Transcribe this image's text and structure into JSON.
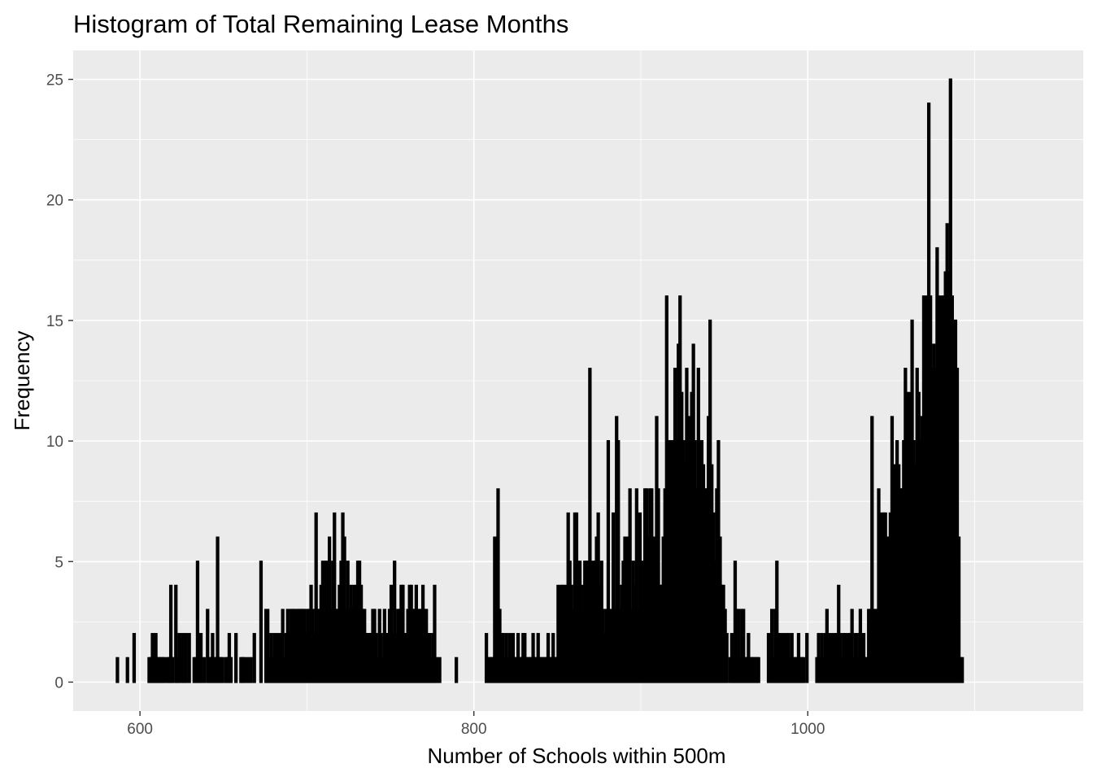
{
  "chart_data": {
    "type": "histogram",
    "title": "Histogram of Total Remaining Lease Months",
    "xlabel": "Number of Schools within 500m",
    "ylabel": "Frequency",
    "xlim": [
      560,
      1165
    ],
    "ylim": [
      -1.2,
      26.2
    ],
    "x_ticks": [
      600,
      800,
      1000
    ],
    "y_ticks": [
      0,
      5,
      10,
      15,
      20,
      25
    ],
    "grid": true,
    "panel_background": "#ebebeb",
    "bar_fill": "#ff9a1a",
    "bar_outline": "#000000",
    "bin_width": 1,
    "bins": [
      [
        586,
        1
      ],
      [
        592,
        1
      ],
      [
        596,
        2
      ],
      [
        605,
        1
      ],
      [
        606,
        1
      ],
      [
        607,
        2
      ],
      [
        608,
        1
      ],
      [
        609,
        2
      ],
      [
        610,
        1
      ],
      [
        611,
        1
      ],
      [
        612,
        1
      ],
      [
        613,
        1
      ],
      [
        614,
        1
      ],
      [
        616,
        1
      ],
      [
        617,
        1
      ],
      [
        618,
        4
      ],
      [
        619,
        1
      ],
      [
        621,
        4
      ],
      [
        622,
        1
      ],
      [
        623,
        2
      ],
      [
        625,
        2
      ],
      [
        626,
        1
      ],
      [
        627,
        2
      ],
      [
        629,
        2
      ],
      [
        632,
        1
      ],
      [
        633,
        1
      ],
      [
        634,
        5
      ],
      [
        635,
        1
      ],
      [
        636,
        2
      ],
      [
        638,
        1
      ],
      [
        640,
        3
      ],
      [
        641,
        1
      ],
      [
        642,
        1
      ],
      [
        643,
        2
      ],
      [
        644,
        1
      ],
      [
        645,
        1
      ],
      [
        646,
        6
      ],
      [
        647,
        1
      ],
      [
        648,
        1
      ],
      [
        649,
        1
      ],
      [
        651,
        1
      ],
      [
        652,
        1
      ],
      [
        653,
        2
      ],
      [
        654,
        1
      ],
      [
        657,
        2
      ],
      [
        660,
        1
      ],
      [
        661,
        1
      ],
      [
        662,
        1
      ],
      [
        664,
        1
      ],
      [
        666,
        1
      ],
      [
        668,
        2
      ],
      [
        672,
        5
      ],
      [
        675,
        3
      ],
      [
        676,
        3
      ],
      [
        677,
        1
      ],
      [
        678,
        2
      ],
      [
        679,
        1
      ],
      [
        680,
        2
      ],
      [
        681,
        1
      ],
      [
        682,
        2
      ],
      [
        683,
        1
      ],
      [
        684,
        2
      ],
      [
        685,
        3
      ],
      [
        686,
        1
      ],
      [
        687,
        2
      ],
      [
        688,
        3
      ],
      [
        689,
        2
      ],
      [
        690,
        3
      ],
      [
        691,
        3
      ],
      [
        692,
        3
      ],
      [
        693,
        2
      ],
      [
        694,
        3
      ],
      [
        695,
        3
      ],
      [
        696,
        3
      ],
      [
        697,
        3
      ],
      [
        698,
        3
      ],
      [
        699,
        2
      ],
      [
        700,
        3
      ],
      [
        701,
        3
      ],
      [
        702,
        4
      ],
      [
        703,
        3
      ],
      [
        704,
        2
      ],
      [
        705,
        7
      ],
      [
        706,
        3
      ],
      [
        707,
        3
      ],
      [
        708,
        4
      ],
      [
        709,
        5
      ],
      [
        710,
        3
      ],
      [
        711,
        5
      ],
      [
        712,
        4
      ],
      [
        713,
        6
      ],
      [
        714,
        3
      ],
      [
        715,
        5
      ],
      [
        716,
        7
      ],
      [
        717,
        3
      ],
      [
        718,
        3
      ],
      [
        719,
        4
      ],
      [
        720,
        5
      ],
      [
        721,
        7
      ],
      [
        722,
        6
      ],
      [
        723,
        3
      ],
      [
        724,
        5
      ],
      [
        725,
        3
      ],
      [
        726,
        4
      ],
      [
        727,
        3
      ],
      [
        728,
        4
      ],
      [
        729,
        3
      ],
      [
        730,
        5
      ],
      [
        731,
        5
      ],
      [
        732,
        4
      ],
      [
        733,
        3
      ],
      [
        734,
        3
      ],
      [
        735,
        2
      ],
      [
        736,
        2
      ],
      [
        737,
        2
      ],
      [
        738,
        2
      ],
      [
        739,
        3
      ],
      [
        740,
        3
      ],
      [
        741,
        2
      ],
      [
        742,
        1
      ],
      [
        743,
        3
      ],
      [
        744,
        2
      ],
      [
        745,
        1
      ],
      [
        746,
        3
      ],
      [
        747,
        2
      ],
      [
        748,
        2
      ],
      [
        749,
        3
      ],
      [
        750,
        4
      ],
      [
        751,
        2
      ],
      [
        752,
        5
      ],
      [
        753,
        2
      ],
      [
        754,
        3
      ],
      [
        755,
        3
      ],
      [
        756,
        4
      ],
      [
        757,
        4
      ],
      [
        758,
        2
      ],
      [
        759,
        2
      ],
      [
        760,
        3
      ],
      [
        761,
        4
      ],
      [
        762,
        4
      ],
      [
        763,
        3
      ],
      [
        764,
        3
      ],
      [
        765,
        4
      ],
      [
        766,
        3
      ],
      [
        767,
        3
      ],
      [
        768,
        3
      ],
      [
        769,
        4
      ],
      [
        770,
        3
      ],
      [
        771,
        3
      ],
      [
        772,
        2
      ],
      [
        773,
        2
      ],
      [
        774,
        1
      ],
      [
        775,
        2
      ],
      [
        776,
        4
      ],
      [
        777,
        1
      ],
      [
        779,
        1
      ],
      [
        789,
        1
      ],
      [
        807,
        2
      ],
      [
        808,
        1
      ],
      [
        809,
        1
      ],
      [
        810,
        1
      ],
      [
        811,
        1
      ],
      [
        812,
        6
      ],
      [
        813,
        6
      ],
      [
        814,
        8
      ],
      [
        815,
        3
      ],
      [
        816,
        2
      ],
      [
        817,
        2
      ],
      [
        818,
        1
      ],
      [
        819,
        2
      ],
      [
        820,
        1
      ],
      [
        821,
        2
      ],
      [
        822,
        1
      ],
      [
        823,
        2
      ],
      [
        824,
        1
      ],
      [
        825,
        1
      ],
      [
        826,
        2
      ],
      [
        827,
        1
      ],
      [
        828,
        1
      ],
      [
        829,
        2
      ],
      [
        830,
        2
      ],
      [
        831,
        1
      ],
      [
        832,
        1
      ],
      [
        833,
        1
      ],
      [
        834,
        1
      ],
      [
        835,
        2
      ],
      [
        836,
        1
      ],
      [
        837,
        1
      ],
      [
        838,
        2
      ],
      [
        839,
        1
      ],
      [
        840,
        1
      ],
      [
        841,
        1
      ],
      [
        842,
        1
      ],
      [
        843,
        1
      ],
      [
        844,
        2
      ],
      [
        845,
        1
      ],
      [
        846,
        1
      ],
      [
        847,
        2
      ],
      [
        848,
        1
      ],
      [
        849,
        1
      ],
      [
        850,
        4
      ],
      [
        851,
        2
      ],
      [
        852,
        4
      ],
      [
        853,
        4
      ],
      [
        854,
        3
      ],
      [
        855,
        4
      ],
      [
        856,
        7
      ],
      [
        857,
        5
      ],
      [
        858,
        4
      ],
      [
        859,
        3
      ],
      [
        860,
        7
      ],
      [
        861,
        7
      ],
      [
        862,
        3
      ],
      [
        863,
        5
      ],
      [
        864,
        3
      ],
      [
        865,
        4
      ],
      [
        866,
        5
      ],
      [
        867,
        5
      ],
      [
        868,
        5
      ],
      [
        869,
        13
      ],
      [
        870,
        3
      ],
      [
        871,
        5
      ],
      [
        872,
        5
      ],
      [
        873,
        6
      ],
      [
        874,
        7
      ],
      [
        875,
        4
      ],
      [
        876,
        5
      ],
      [
        877,
        3
      ],
      [
        878,
        2
      ],
      [
        879,
        3
      ],
      [
        880,
        10
      ],
      [
        881,
        3
      ],
      [
        882,
        2
      ],
      [
        883,
        7
      ],
      [
        884,
        3
      ],
      [
        885,
        11
      ],
      [
        886,
        10
      ],
      [
        887,
        3
      ],
      [
        888,
        4
      ],
      [
        889,
        5
      ],
      [
        890,
        6
      ],
      [
        891,
        4
      ],
      [
        892,
        6
      ],
      [
        893,
        8
      ],
      [
        894,
        3
      ],
      [
        895,
        5
      ],
      [
        896,
        4
      ],
      [
        897,
        8
      ],
      [
        898,
        3
      ],
      [
        899,
        7
      ],
      [
        900,
        4
      ],
      [
        901,
        5
      ],
      [
        902,
        8
      ],
      [
        903,
        8
      ],
      [
        904,
        6
      ],
      [
        905,
        8
      ],
      [
        906,
        8
      ],
      [
        907,
        6
      ],
      [
        908,
        4
      ],
      [
        909,
        11
      ],
      [
        910,
        8
      ],
      [
        911,
        4
      ],
      [
        912,
        4
      ],
      [
        913,
        6
      ],
      [
        914,
        8
      ],
      [
        915,
        16
      ],
      [
        916,
        10
      ],
      [
        917,
        10
      ],
      [
        918,
        9
      ],
      [
        919,
        10
      ],
      [
        920,
        13
      ],
      [
        921,
        10
      ],
      [
        922,
        14
      ],
      [
        923,
        16
      ],
      [
        924,
        12
      ],
      [
        925,
        10
      ],
      [
        926,
        9
      ],
      [
        927,
        13
      ],
      [
        928,
        11
      ],
      [
        929,
        8
      ],
      [
        930,
        12
      ],
      [
        931,
        14
      ],
      [
        932,
        10
      ],
      [
        933,
        8
      ],
      [
        934,
        13
      ],
      [
        935,
        10
      ],
      [
        936,
        10
      ],
      [
        937,
        9
      ],
      [
        938,
        8
      ],
      [
        939,
        8
      ],
      [
        940,
        11
      ],
      [
        941,
        15
      ],
      [
        942,
        9
      ],
      [
        943,
        7
      ],
      [
        944,
        5
      ],
      [
        945,
        8
      ],
      [
        946,
        10
      ],
      [
        947,
        6
      ],
      [
        948,
        4
      ],
      [
        949,
        4
      ],
      [
        950,
        3
      ],
      [
        951,
        2
      ],
      [
        953,
        1
      ],
      [
        954,
        2
      ],
      [
        955,
        1
      ],
      [
        956,
        5
      ],
      [
        957,
        3
      ],
      [
        958,
        3
      ],
      [
        959,
        1
      ],
      [
        960,
        3
      ],
      [
        961,
        3
      ],
      [
        962,
        1
      ],
      [
        963,
        1
      ],
      [
        964,
        2
      ],
      [
        965,
        1
      ],
      [
        966,
        1
      ],
      [
        967,
        1
      ],
      [
        968,
        1
      ],
      [
        969,
        1
      ],
      [
        970,
        1
      ],
      [
        976,
        2
      ],
      [
        977,
        1
      ],
      [
        978,
        3
      ],
      [
        979,
        1
      ],
      [
        980,
        3
      ],
      [
        981,
        5
      ],
      [
        982,
        2
      ],
      [
        983,
        2
      ],
      [
        984,
        1
      ],
      [
        985,
        2
      ],
      [
        986,
        1
      ],
      [
        987,
        2
      ],
      [
        988,
        2
      ],
      [
        989,
        1
      ],
      [
        990,
        2
      ],
      [
        991,
        1
      ],
      [
        992,
        1
      ],
      [
        993,
        1
      ],
      [
        994,
        2
      ],
      [
        995,
        1
      ],
      [
        996,
        1
      ],
      [
        997,
        1
      ],
      [
        999,
        2
      ],
      [
        1005,
        1
      ],
      [
        1006,
        2
      ],
      [
        1007,
        1
      ],
      [
        1008,
        2
      ],
      [
        1009,
        1
      ],
      [
        1010,
        2
      ],
      [
        1011,
        3
      ],
      [
        1012,
        2
      ],
      [
        1013,
        1
      ],
      [
        1014,
        2
      ],
      [
        1015,
        1
      ],
      [
        1016,
        2
      ],
      [
        1017,
        2
      ],
      [
        1018,
        4
      ],
      [
        1019,
        2
      ],
      [
        1020,
        1
      ],
      [
        1021,
        2
      ],
      [
        1022,
        2
      ],
      [
        1023,
        1
      ],
      [
        1024,
        2
      ],
      [
        1025,
        2
      ],
      [
        1026,
        3
      ],
      [
        1027,
        1
      ],
      [
        1028,
        2
      ],
      [
        1029,
        2
      ],
      [
        1030,
        1
      ],
      [
        1031,
        3
      ],
      [
        1032,
        1
      ],
      [
        1033,
        2
      ],
      [
        1034,
        1
      ],
      [
        1035,
        1
      ],
      [
        1036,
        3
      ],
      [
        1037,
        3
      ],
      [
        1038,
        11
      ],
      [
        1039,
        3
      ],
      [
        1040,
        3
      ],
      [
        1041,
        2
      ],
      [
        1042,
        8
      ],
      [
        1043,
        5
      ],
      [
        1044,
        7
      ],
      [
        1045,
        7
      ],
      [
        1046,
        7
      ],
      [
        1047,
        6
      ],
      [
        1048,
        6
      ],
      [
        1049,
        7
      ],
      [
        1050,
        11
      ],
      [
        1051,
        9
      ],
      [
        1052,
        8
      ],
      [
        1053,
        10
      ],
      [
        1054,
        9
      ],
      [
        1055,
        8
      ],
      [
        1056,
        8
      ],
      [
        1057,
        10
      ],
      [
        1058,
        13
      ],
      [
        1059,
        10
      ],
      [
        1060,
        12
      ],
      [
        1061,
        11
      ],
      [
        1062,
        15
      ],
      [
        1063,
        10
      ],
      [
        1064,
        9
      ],
      [
        1065,
        13
      ],
      [
        1066,
        12
      ],
      [
        1067,
        10
      ],
      [
        1068,
        11
      ],
      [
        1069,
        16
      ],
      [
        1070,
        14
      ],
      [
        1071,
        16
      ],
      [
        1072,
        24
      ],
      [
        1073,
        16
      ],
      [
        1074,
        13
      ],
      [
        1075,
        14
      ],
      [
        1076,
        13
      ],
      [
        1077,
        18
      ],
      [
        1078,
        14
      ],
      [
        1079,
        16
      ],
      [
        1080,
        14
      ],
      [
        1081,
        16
      ],
      [
        1082,
        17
      ],
      [
        1083,
        19
      ],
      [
        1084,
        17
      ],
      [
        1085,
        25
      ],
      [
        1086,
        16
      ],
      [
        1087,
        13
      ],
      [
        1088,
        15
      ],
      [
        1089,
        13
      ],
      [
        1090,
        6
      ],
      [
        1091,
        1
      ],
      [
        1092,
        1
      ]
    ]
  }
}
